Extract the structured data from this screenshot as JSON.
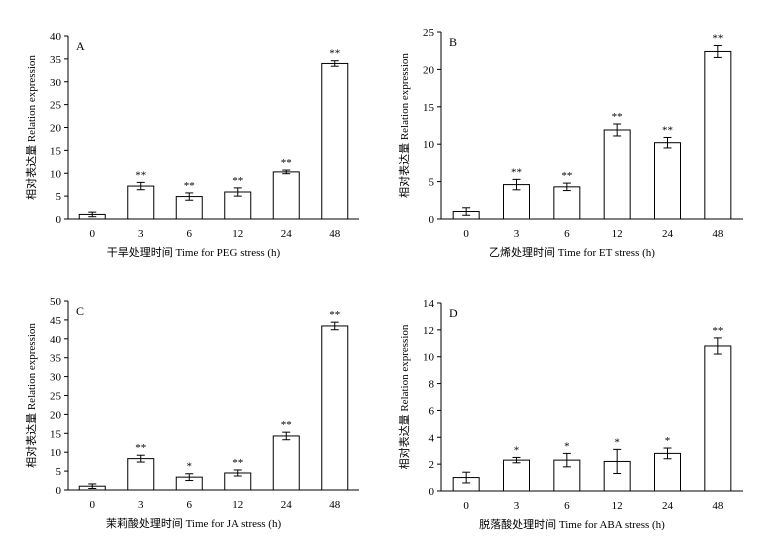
{
  "chart_data": [
    {
      "type": "bar",
      "panel": "A",
      "categories": [
        "0",
        "3",
        "6",
        "12",
        "24",
        "48"
      ],
      "values": [
        1.0,
        7.2,
        4.9,
        5.9,
        10.3,
        34.0
      ],
      "errors": [
        0.5,
        0.8,
        0.8,
        0.9,
        0.4,
        0.6
      ],
      "significance": [
        "",
        "**",
        "**",
        "**",
        "**",
        "**"
      ],
      "xlabel": "干旱处理时间 Time for PEG stress (h)",
      "ylabel": "相对表达量 Relation expression",
      "ylim": [
        0,
        40
      ],
      "yticks": [
        0,
        5,
        10,
        15,
        20,
        25,
        30,
        35,
        40
      ]
    },
    {
      "type": "bar",
      "panel": "B",
      "categories": [
        "0",
        "3",
        "6",
        "12",
        "24",
        "48"
      ],
      "values": [
        1.0,
        4.6,
        4.3,
        11.9,
        10.2,
        22.4
      ],
      "errors": [
        0.5,
        0.7,
        0.5,
        0.8,
        0.7,
        0.8
      ],
      "significance": [
        "",
        "**",
        "**",
        "**",
        "**",
        "**"
      ],
      "xlabel": "乙烯处理时间 Time for ET stress (h)",
      "ylabel": "相对表达量 Relation expression",
      "ylim": [
        0,
        25
      ],
      "yticks": [
        0,
        5,
        10,
        15,
        20,
        25
      ]
    },
    {
      "type": "bar",
      "panel": "C",
      "categories": [
        "0",
        "3",
        "6",
        "12",
        "24",
        "48"
      ],
      "values": [
        1.0,
        8.3,
        3.4,
        4.5,
        14.3,
        43.4
      ],
      "errors": [
        0.6,
        0.9,
        0.9,
        0.8,
        1.0,
        1.0
      ],
      "significance": [
        "",
        "**",
        "*",
        "**",
        "**",
        "**"
      ],
      "xlabel": "茉莉酸处理时间 Time for JA stress (h)",
      "ylabel": "相对表达量 Relation expression",
      "ylim": [
        0,
        50
      ],
      "yticks": [
        0,
        5,
        10,
        15,
        20,
        25,
        30,
        35,
        40,
        45,
        50
      ]
    },
    {
      "type": "bar",
      "panel": "D",
      "categories": [
        "0",
        "3",
        "6",
        "12",
        "24",
        "48"
      ],
      "values": [
        1.0,
        2.3,
        2.3,
        2.2,
        2.8,
        10.8
      ],
      "errors": [
        0.4,
        0.2,
        0.5,
        0.9,
        0.4,
        0.6
      ],
      "significance": [
        "",
        "*",
        "*",
        "*",
        "*",
        "**"
      ],
      "xlabel": "脱落酸处理时间 Time for ABA stress (h)",
      "ylabel": "相对表达量 Relation expression",
      "ylim": [
        0,
        14
      ],
      "yticks": [
        0,
        2,
        4,
        6,
        8,
        10,
        12,
        14
      ]
    }
  ]
}
